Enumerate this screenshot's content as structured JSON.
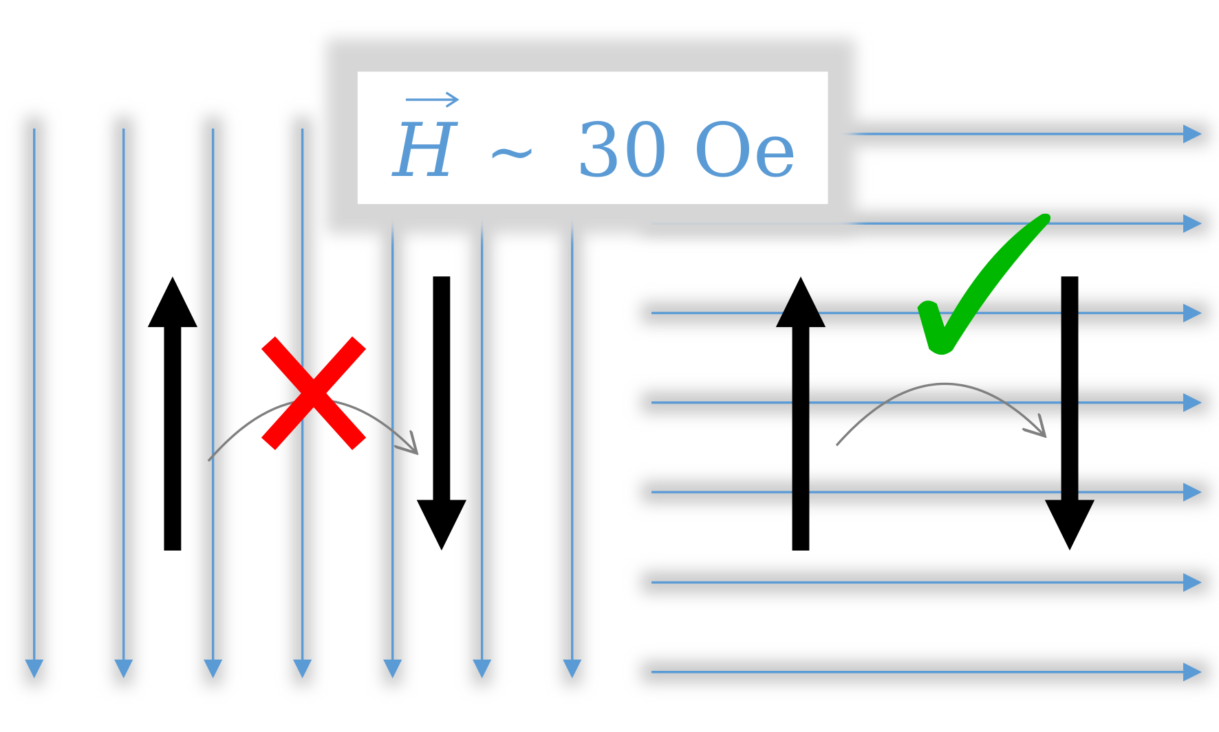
{
  "label": {
    "symbol": "H",
    "relation": "~",
    "value": "30 Oe"
  },
  "colors": {
    "field_lines": "#5b9bd5",
    "spin_arrows": "#000000",
    "transition_arc": "#808080",
    "forbidden_mark": "#ff0000",
    "allowed_mark": "#00b800"
  },
  "left_panel": {
    "field_direction": "down",
    "transition": "forbidden",
    "mark_icon": "cross-icon"
  },
  "right_panel": {
    "field_direction": "right",
    "transition": "allowed",
    "mark_icon": "check-icon"
  }
}
